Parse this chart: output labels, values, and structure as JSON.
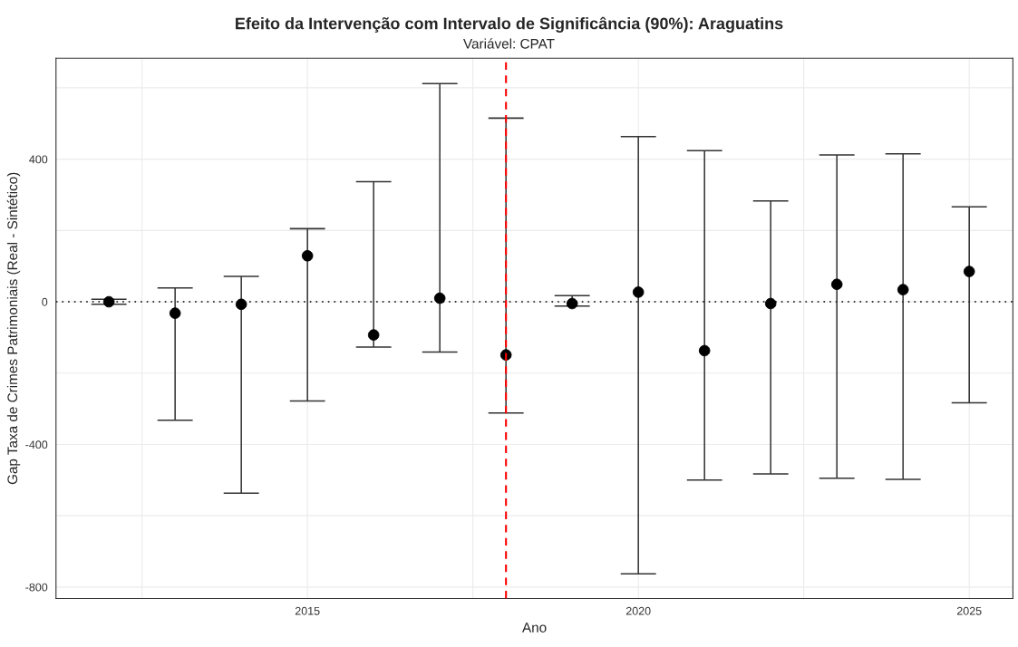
{
  "chart_data": {
    "type": "scatter",
    "title": "Efeito da Intervenção com Intervalo de Significância (90%): Araguatins",
    "subtitle": "Variável: CPAT",
    "xlabel": "Ano",
    "ylabel": "Gap Taxa de Crimes Patrimoniais (Real - Sintético)",
    "x": [
      2012,
      2013,
      2014,
      2015,
      2016,
      2017,
      2018,
      2019,
      2020,
      2021,
      2022,
      2023,
      2024,
      2025
    ],
    "series": [
      {
        "color": "#000000",
        "values": [
          0,
          -32,
          -7,
          129,
          -93,
          10,
          -149,
          -5,
          27,
          -137,
          -5,
          49,
          34,
          85
        ],
        "errors": [
          [
            -7,
            7
          ],
          [
            -332,
            39
          ],
          [
            -537,
            71
          ],
          [
            -278,
            205
          ],
          [
            -127,
            337
          ],
          [
            -141,
            612
          ],
          [
            -312,
            515
          ],
          [
            -12,
            17
          ],
          [
            -763,
            463
          ],
          [
            -500,
            424
          ],
          [
            -483,
            283
          ],
          [
            -495,
            412
          ],
          [
            -498,
            415
          ],
          [
            -283,
            266
          ]
        ]
      }
    ],
    "xlim": [
      2011.2,
      2025.66
    ],
    "ylim": [
      -832,
      683
    ],
    "xticks": [
      {
        "value": 2012.5,
        "label": null
      },
      2015,
      {
        "value": 2017.5,
        "label": null
      },
      2020,
      {
        "value": 2022.5,
        "label": null
      },
      2025
    ],
    "yticks": [
      -800,
      {
        "value": -600,
        "label": null
      },
      -400,
      {
        "value": -200,
        "label": null
      },
      0,
      {
        "value": 200,
        "label": null
      },
      400,
      {
        "value": 600,
        "label": null
      }
    ],
    "ref_lines": [
      {
        "axis": "y",
        "value": 0,
        "color": "#000000",
        "line_style": "dotted"
      },
      {
        "axis": "x",
        "value": 2018,
        "color": "#ff0000",
        "line_style": "dashed"
      }
    ],
    "grid": true,
    "marker": "circle",
    "legend": false
  }
}
